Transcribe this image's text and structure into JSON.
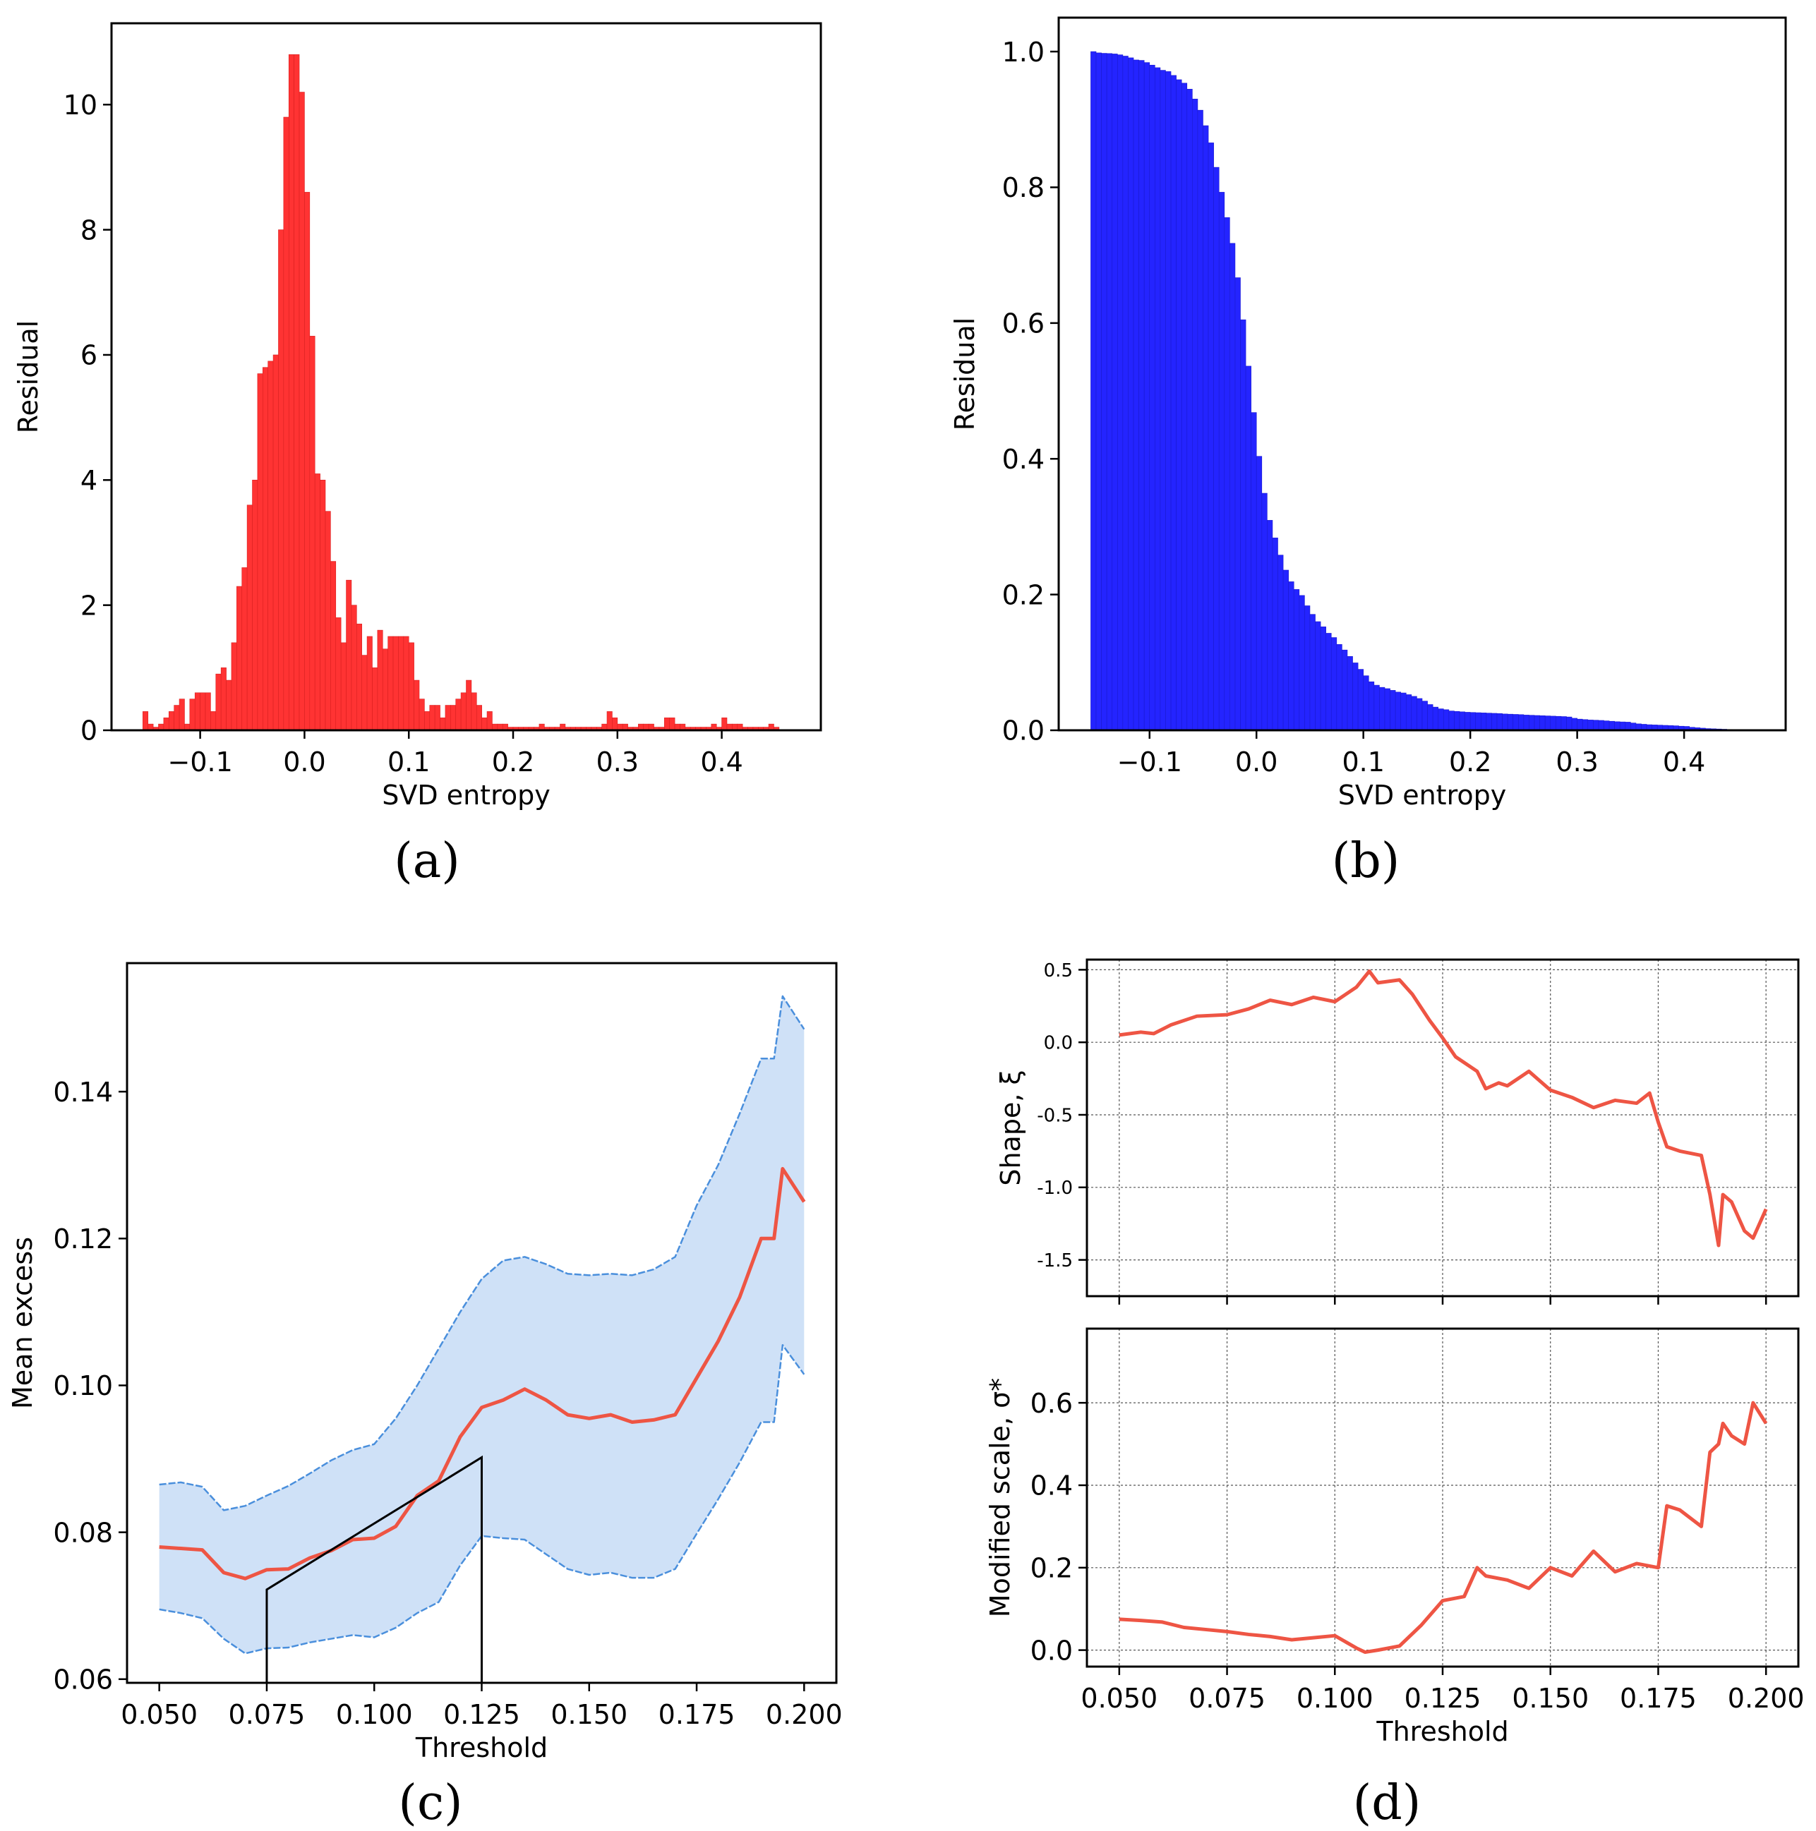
{
  "colors": {
    "red_hist": "#ff3333",
    "blue_hist": "#2424ff",
    "red_line": "#ee5544",
    "ci_line": "#4a8fdc",
    "ci_fill": "#cfe1f7",
    "black": "#000000"
  },
  "chart_data": [
    {
      "id": "a",
      "panel_label": "(a)",
      "type": "bar",
      "xlabel": "SVD entropy",
      "ylabel": "Residual",
      "xlim": [
        -0.185,
        0.495
      ],
      "ylim": [
        0,
        11.3
      ],
      "xticks": [
        -0.1,
        0.0,
        0.1,
        0.2,
        0.3,
        0.4
      ],
      "xtick_labels": [
        "−0.1",
        "0.0",
        "0.1",
        "0.2",
        "0.3",
        "0.4"
      ],
      "yticks": [
        0,
        2,
        4,
        6,
        8,
        10
      ],
      "ytick_labels": [
        "0",
        "2",
        "4",
        "6",
        "8",
        "10"
      ],
      "bin_start": -0.155,
      "bin_width": 0.005,
      "values": [
        0.3,
        0.1,
        0.05,
        0.1,
        0.2,
        0.3,
        0.4,
        0.5,
        0.1,
        0.5,
        0.6,
        0.6,
        0.6,
        0.3,
        0.9,
        1.0,
        0.8,
        1.4,
        2.3,
        2.6,
        3.6,
        4.0,
        5.7,
        5.8,
        5.9,
        6.0,
        8.0,
        9.8,
        10.8,
        10.8,
        10.2,
        8.6,
        6.3,
        4.1,
        4.0,
        3.5,
        2.7,
        1.8,
        1.4,
        2.4,
        2.0,
        1.7,
        1.2,
        1.5,
        1.0,
        1.6,
        1.3,
        1.5,
        1.5,
        1.5,
        1.5,
        1.4,
        0.8,
        0.5,
        0.3,
        0.4,
        0.4,
        0.2,
        0.4,
        0.4,
        0.5,
        0.6,
        0.8,
        0.6,
        0.4,
        0.2,
        0.3,
        0.1,
        0.1,
        0.1,
        0.05,
        0.05,
        0.05,
        0.05,
        0.05,
        0.05,
        0.1,
        0.05,
        0.05,
        0.05,
        0.1,
        0.05,
        0.05,
        0.05,
        0.05,
        0.05,
        0.05,
        0.05,
        0.1,
        0.3,
        0.2,
        0.1,
        0.1,
        0.05,
        0.05,
        0.1,
        0.1,
        0.1,
        0.05,
        0.05,
        0.2,
        0.2,
        0.1,
        0.1,
        0.05,
        0.05,
        0.05,
        0.05,
        0.05,
        0.1,
        0.05,
        0.2,
        0.1,
        0.1,
        0.1,
        0.05,
        0.05,
        0.05,
        0.05,
        0.05,
        0.1,
        0.05
      ]
    },
    {
      "id": "b",
      "panel_label": "(b)",
      "type": "bar",
      "xlabel": "SVD entropy",
      "ylabel": "Residual",
      "xlim": [
        -0.185,
        0.495
      ],
      "ylim": [
        0,
        1.05
      ],
      "xticks": [
        -0.1,
        0.0,
        0.1,
        0.2,
        0.3,
        0.4
      ],
      "xtick_labels": [
        "−0.1",
        "0.0",
        "0.1",
        "0.2",
        "0.3",
        "0.4"
      ],
      "yticks": [
        0.0,
        0.2,
        0.4,
        0.6,
        0.8,
        1.0
      ],
      "ytick_labels": [
        "0.0",
        "0.2",
        "0.4",
        "0.6",
        "0.8",
        "1.0"
      ],
      "description": "complementary cumulative distribution (1 - CDF) of the residuals",
      "bin_start": -0.155,
      "bin_width": 0.005,
      "derive_from_panel": "a"
    },
    {
      "id": "c",
      "panel_label": "(c)",
      "type": "line",
      "xlabel": "Threshold",
      "ylabel": "Mean excess",
      "xlim": [
        0.0425,
        0.2075
      ],
      "ylim": [
        0.0595,
        0.1575
      ],
      "xticks": [
        0.05,
        0.075,
        0.1,
        0.125,
        0.15,
        0.175,
        0.2
      ],
      "xtick_labels": [
        "0.050",
        "0.075",
        "0.100",
        "0.125",
        "0.150",
        "0.175",
        "0.200"
      ],
      "yticks": [
        0.06,
        0.08,
        0.1,
        0.12,
        0.14
      ],
      "ytick_labels": [
        "0.06",
        "0.08",
        "0.10",
        "0.12",
        "0.14"
      ],
      "series": [
        {
          "name": "mean excess",
          "role": "center",
          "x": [
            0.05,
            0.055,
            0.06,
            0.065,
            0.07,
            0.075,
            0.08,
            0.085,
            0.09,
            0.095,
            0.1,
            0.105,
            0.11,
            0.115,
            0.12,
            0.125,
            0.13,
            0.135,
            0.14,
            0.145,
            0.15,
            0.155,
            0.16,
            0.165,
            0.17,
            0.175,
            0.18,
            0.185,
            0.19,
            0.193,
            0.195,
            0.2
          ],
          "y": [
            0.078,
            0.0778,
            0.0776,
            0.0745,
            0.0737,
            0.0749,
            0.075,
            0.0765,
            0.0775,
            0.079,
            0.0792,
            0.0808,
            0.085,
            0.087,
            0.093,
            0.097,
            0.098,
            0.0995,
            0.098,
            0.096,
            0.0955,
            0.096,
            0.095,
            0.0953,
            0.096,
            0.101,
            0.106,
            0.112,
            0.12,
            0.12,
            0.1295,
            0.125
          ]
        },
        {
          "name": "upper bound",
          "role": "upper",
          "x": [
            0.05,
            0.055,
            0.06,
            0.065,
            0.07,
            0.075,
            0.08,
            0.085,
            0.09,
            0.095,
            0.1,
            0.105,
            0.11,
            0.115,
            0.12,
            0.125,
            0.13,
            0.135,
            0.14,
            0.145,
            0.15,
            0.155,
            0.16,
            0.165,
            0.17,
            0.175,
            0.18,
            0.185,
            0.19,
            0.193,
            0.195,
            0.2
          ],
          "y": [
            0.0865,
            0.0868,
            0.0862,
            0.083,
            0.0836,
            0.085,
            0.0863,
            0.088,
            0.0898,
            0.0912,
            0.092,
            0.0955,
            0.1,
            0.105,
            0.11,
            0.1145,
            0.117,
            0.1175,
            0.1165,
            0.1152,
            0.115,
            0.1152,
            0.115,
            0.1158,
            0.1175,
            0.1245,
            0.13,
            0.137,
            0.1445,
            0.1445,
            0.153,
            0.1485
          ]
        },
        {
          "name": "lower bound",
          "role": "lower",
          "x": [
            0.05,
            0.055,
            0.06,
            0.065,
            0.07,
            0.075,
            0.08,
            0.085,
            0.09,
            0.095,
            0.1,
            0.105,
            0.11,
            0.115,
            0.12,
            0.125,
            0.13,
            0.135,
            0.14,
            0.145,
            0.15,
            0.155,
            0.16,
            0.165,
            0.17,
            0.175,
            0.18,
            0.185,
            0.19,
            0.193,
            0.195,
            0.2
          ],
          "y": [
            0.0695,
            0.069,
            0.0683,
            0.0655,
            0.0635,
            0.0642,
            0.0643,
            0.065,
            0.0655,
            0.066,
            0.0657,
            0.067,
            0.069,
            0.0705,
            0.0755,
            0.0795,
            0.0792,
            0.079,
            0.077,
            0.075,
            0.0742,
            0.0745,
            0.0738,
            0.0738,
            0.075,
            0.0798,
            0.0845,
            0.0895,
            0.095,
            0.095,
            0.1055,
            0.1015
          ]
        }
      ],
      "annotation": {
        "type": "polyline",
        "x": [
          0.075,
          0.075,
          0.125,
          0.125
        ],
        "y": [
          0.0595,
          0.0722,
          0.0902,
          0.0595
        ]
      }
    },
    {
      "id": "d",
      "panel_label": "(d)",
      "type": "line",
      "xlabel": "Threshold",
      "xticks": [
        0.05,
        0.075,
        0.1,
        0.125,
        0.15,
        0.175,
        0.2
      ],
      "xtick_labels": [
        "0.050",
        "0.075",
        "0.100",
        "0.125",
        "0.150",
        "0.175",
        "0.200"
      ],
      "subplots": [
        {
          "ylabel": "Shape, ξ",
          "xlim": [
            0.0425,
            0.2075
          ],
          "ylim": [
            -1.75,
            0.57
          ],
          "yticks": [
            0.5,
            0.0,
            -0.5,
            -1.0,
            -1.5
          ],
          "ytick_labels": [
            "0.5",
            "0.0",
            "-0.5",
            "-1.0",
            "-1.5"
          ],
          "grid": true,
          "series": [
            {
              "name": "shape",
              "x": [
                0.05,
                0.055,
                0.058,
                0.062,
                0.068,
                0.075,
                0.08,
                0.085,
                0.09,
                0.095,
                0.1,
                0.105,
                0.108,
                0.11,
                0.115,
                0.118,
                0.122,
                0.125,
                0.128,
                0.133,
                0.135,
                0.138,
                0.14,
                0.145,
                0.15,
                0.155,
                0.16,
                0.165,
                0.17,
                0.173,
                0.175,
                0.177,
                0.18,
                0.185,
                0.187,
                0.189,
                0.19,
                0.192,
                0.195,
                0.197,
                0.2
              ],
              "y": [
                0.05,
                0.07,
                0.06,
                0.12,
                0.18,
                0.19,
                0.23,
                0.29,
                0.26,
                0.31,
                0.28,
                0.38,
                0.49,
                0.41,
                0.43,
                0.33,
                0.15,
                0.03,
                -0.1,
                -0.2,
                -0.32,
                -0.28,
                -0.3,
                -0.2,
                -0.33,
                -0.38,
                -0.45,
                -0.4,
                -0.42,
                -0.35,
                -0.55,
                -0.72,
                -0.75,
                -0.78,
                -1.05,
                -1.4,
                -1.05,
                -1.1,
                -1.3,
                -1.35,
                -1.15
              ]
            }
          ]
        },
        {
          "ylabel": "Modified scale, σ*",
          "xlim": [
            0.0425,
            0.2075
          ],
          "ylim": [
            -0.04,
            0.78
          ],
          "yticks": [
            0.0,
            0.2,
            0.4,
            0.6
          ],
          "ytick_labels": [
            "0.0",
            "0.2",
            "0.4",
            "0.6"
          ],
          "grid": true,
          "series": [
            {
              "name": "modified scale",
              "x": [
                0.05,
                0.055,
                0.06,
                0.065,
                0.07,
                0.075,
                0.08,
                0.085,
                0.09,
                0.095,
                0.1,
                0.105,
                0.107,
                0.11,
                0.115,
                0.12,
                0.125,
                0.13,
                0.133,
                0.135,
                0.14,
                0.145,
                0.15,
                0.155,
                0.16,
                0.165,
                0.17,
                0.175,
                0.177,
                0.18,
                0.185,
                0.187,
                0.189,
                0.19,
                0.192,
                0.195,
                0.197,
                0.2
              ],
              "y": [
                0.075,
                0.072,
                0.068,
                0.055,
                0.05,
                0.045,
                0.038,
                0.033,
                0.025,
                0.03,
                0.035,
                0.005,
                -0.005,
                0.0,
                0.01,
                0.06,
                0.12,
                0.13,
                0.2,
                0.18,
                0.17,
                0.15,
                0.2,
                0.18,
                0.24,
                0.19,
                0.21,
                0.2,
                0.35,
                0.34,
                0.3,
                0.48,
                0.5,
                0.55,
                0.52,
                0.5,
                0.6,
                0.55
              ]
            }
          ]
        }
      ]
    }
  ]
}
